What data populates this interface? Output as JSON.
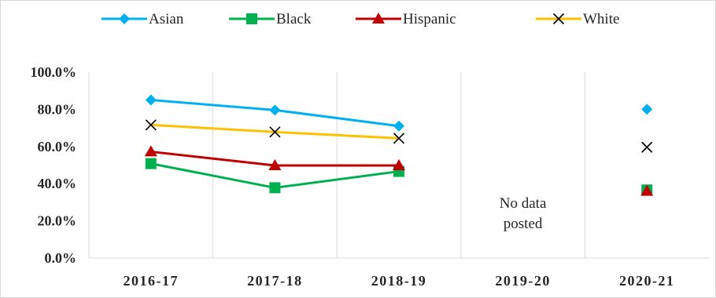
{
  "chart_data": {
    "type": "line",
    "categories": [
      "2016-17",
      "2017-18",
      "2018-19",
      "2019-20",
      "2020-21"
    ],
    "ylim": [
      0,
      100
    ],
    "yticks": [
      "0.0%",
      "20.0%",
      "40.0%",
      "60.0%",
      "80.0%",
      "100.0%"
    ],
    "grid": "vertical",
    "legend_position": "top",
    "series": [
      {
        "name": "Asian",
        "color": "#00b0f0",
        "marker": "diamond",
        "values": [
          85.0,
          79.6,
          71.0,
          null,
          80.0
        ]
      },
      {
        "name": "Black",
        "color": "#00b050",
        "marker": "square",
        "values": [
          50.8,
          37.8,
          46.6,
          null,
          36.6
        ]
      },
      {
        "name": "Hispanic",
        "color": "#c00000",
        "marker": "triangle",
        "values": [
          57.2,
          49.8,
          49.8,
          null,
          36.0
        ]
      },
      {
        "name": "White",
        "color": "#ffc000",
        "marker": "x",
        "values": [
          71.6,
          67.8,
          64.4,
          null,
          59.6
        ]
      }
    ],
    "annotation": {
      "category": "2019-20",
      "lines": [
        "No data",
        "posted"
      ]
    }
  }
}
